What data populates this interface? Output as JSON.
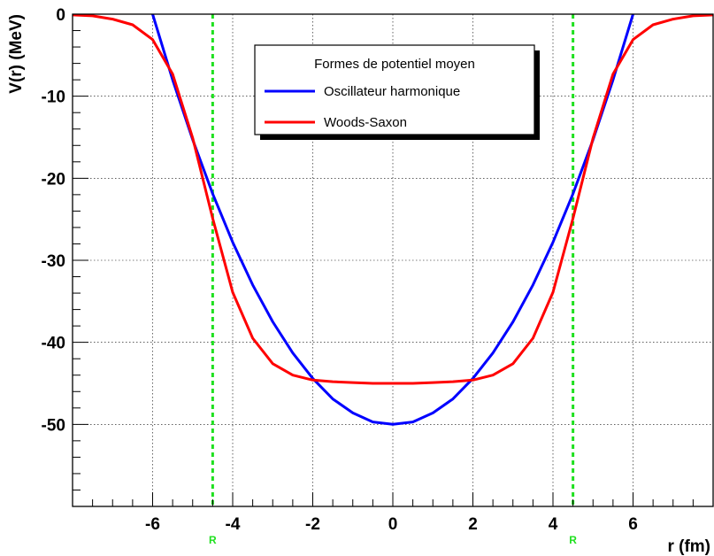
{
  "chart_data": {
    "type": "line",
    "xlabel": "r (fm)",
    "ylabel": "V(r) (MeV)",
    "xlim": [
      -8,
      8
    ],
    "ylim": [
      -60,
      0
    ],
    "grid": true,
    "x_ticks": [
      -6,
      -4,
      -2,
      0,
      2,
      4,
      6
    ],
    "x_tick_labels": [
      "-6",
      "-4",
      "-2",
      "0",
      "2",
      "4",
      "6"
    ],
    "y_ticks": [
      0,
      -10,
      -20,
      -30,
      -40,
      -50
    ],
    "y_tick_labels": [
      "0",
      "-10",
      "-20",
      "-30",
      "-40",
      "-50"
    ],
    "legend": {
      "title": "Formes de potentiel moyen",
      "placement": "top-center"
    },
    "series": [
      {
        "name": "Oscillateur harmonique",
        "color": "#0000ff",
        "x": [
          -6.0,
          -5.5,
          -5.0,
          -4.5,
          -4.0,
          -3.5,
          -3.0,
          -2.5,
          -2.0,
          -1.5,
          -1.0,
          -0.5,
          0.0,
          0.5,
          1.0,
          1.5,
          2.0,
          2.5,
          3.0,
          3.5,
          4.0,
          4.5,
          5.0,
          5.5,
          6.0
        ],
        "y": [
          0.0,
          -8.0,
          -15.3,
          -21.9,
          -27.8,
          -33.0,
          -37.5,
          -41.3,
          -44.4,
          -46.9,
          -48.6,
          -49.7,
          -50.0,
          -49.7,
          -48.6,
          -46.9,
          -44.4,
          -41.3,
          -37.5,
          -33.0,
          -27.8,
          -21.9,
          -15.3,
          -8.0,
          0.0
        ]
      },
      {
        "name": "Woods-Saxon",
        "color": "#ff0000",
        "x": [
          -8.0,
          -7.5,
          -7.0,
          -6.5,
          -6.0,
          -5.5,
          -5.0,
          -4.5,
          -4.0,
          -3.5,
          -3.0,
          -2.5,
          -2.0,
          -1.5,
          -1.0,
          -0.5,
          0.0,
          0.5,
          1.0,
          1.5,
          2.0,
          2.5,
          3.0,
          3.5,
          4.0,
          4.5,
          5.0,
          5.5,
          6.0,
          6.5,
          7.0,
          7.5,
          8.0
        ],
        "y": [
          -0.1,
          -0.2,
          -0.6,
          -1.3,
          -3.1,
          -7.3,
          -15.1,
          -24.9,
          -33.9,
          -39.5,
          -42.6,
          -44.0,
          -44.6,
          -44.8,
          -44.9,
          -45.0,
          -45.0,
          -45.0,
          -44.9,
          -44.8,
          -44.6,
          -44.0,
          -42.6,
          -39.5,
          -33.9,
          -24.9,
          -15.1,
          -7.3,
          -3.1,
          -1.3,
          -0.6,
          -0.2,
          -0.1
        ]
      }
    ],
    "markers": [
      {
        "x": -4.5,
        "label": "R",
        "color": "#1fe01f"
      },
      {
        "x": 4.5,
        "label": "R",
        "color": "#1fe01f"
      }
    ]
  }
}
